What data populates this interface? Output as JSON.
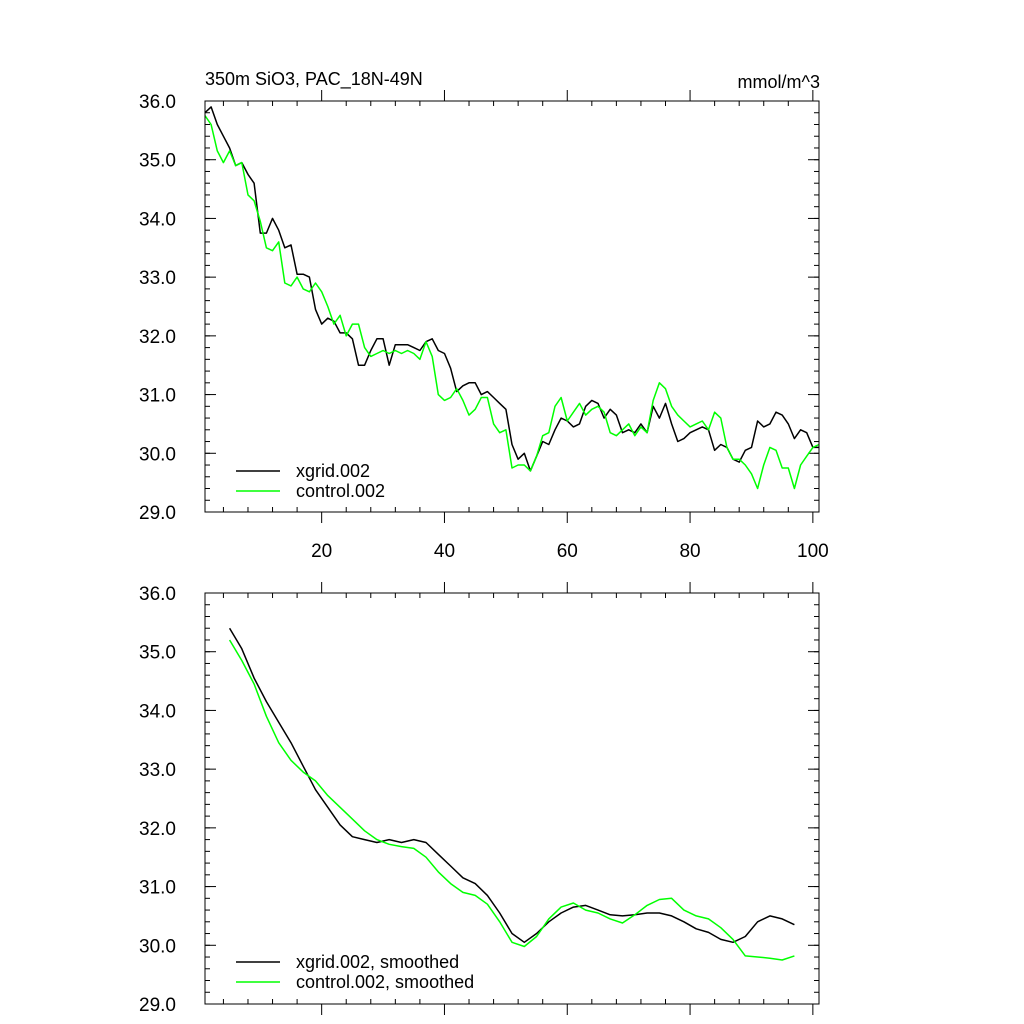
{
  "chart_data": [
    {
      "type": "line",
      "title": "350m SiO3, PAC_18N-49N",
      "units": "mmol/m^3",
      "xlabel": "",
      "ylabel": "",
      "xlim": [
        1,
        101
      ],
      "ylim": [
        29.0,
        36.0
      ],
      "xticks": [
        20,
        40,
        60,
        80,
        100
      ],
      "yticks": [
        29.0,
        30.0,
        31.0,
        32.0,
        33.0,
        34.0,
        35.0,
        36.0
      ],
      "ytick_labels": [
        "29.0",
        "30.0",
        "31.0",
        "32.0",
        "33.0",
        "34.0",
        "35.0",
        "36.0"
      ],
      "legend_position": "bottom-left",
      "series": [
        {
          "name": "xgrid.002",
          "color": "#000000",
          "x": [
            1,
            2,
            3,
            4,
            5,
            6,
            7,
            8,
            9,
            10,
            11,
            12,
            13,
            14,
            15,
            16,
            17,
            18,
            19,
            20,
            21,
            22,
            23,
            24,
            25,
            26,
            27,
            28,
            29,
            30,
            31,
            32,
            33,
            34,
            35,
            36,
            37,
            38,
            39,
            40,
            41,
            42,
            43,
            44,
            45,
            46,
            47,
            48,
            49,
            50,
            51,
            52,
            53,
            54,
            55,
            56,
            57,
            58,
            59,
            60,
            61,
            62,
            63,
            64,
            65,
            66,
            67,
            68,
            69,
            70,
            71,
            72,
            73,
            74,
            75,
            76,
            77,
            78,
            79,
            80,
            81,
            82,
            83,
            84,
            85,
            86,
            87,
            88,
            89,
            90,
            91,
            92,
            93,
            94,
            95,
            96,
            97,
            98,
            99,
            100,
            101
          ],
          "values": [
            35.8,
            35.9,
            35.6,
            35.4,
            35.2,
            34.9,
            34.95,
            34.75,
            34.6,
            33.75,
            33.75,
            34.0,
            33.8,
            33.5,
            33.55,
            33.05,
            33.05,
            33.0,
            32.45,
            32.2,
            32.3,
            32.25,
            32.05,
            32.05,
            31.95,
            31.5,
            31.5,
            31.75,
            31.95,
            31.95,
            31.5,
            31.85,
            31.85,
            31.85,
            31.8,
            31.75,
            31.9,
            31.95,
            31.75,
            31.7,
            31.45,
            31.05,
            31.15,
            31.2,
            31.2,
            31.0,
            31.05,
            30.95,
            30.85,
            30.75,
            30.15,
            29.9,
            30.0,
            29.7,
            29.95,
            30.2,
            30.15,
            30.4,
            30.6,
            30.55,
            30.45,
            30.5,
            30.8,
            30.9,
            30.85,
            30.6,
            30.75,
            30.65,
            30.35,
            30.4,
            30.35,
            30.5,
            30.35,
            30.8,
            30.6,
            30.85,
            30.5,
            30.2,
            30.25,
            30.35,
            30.4,
            30.45,
            30.4,
            30.05,
            30.15,
            30.1,
            29.9,
            29.85,
            30.05,
            30.1,
            30.55,
            30.45,
            30.5,
            30.7,
            30.65,
            30.5,
            30.25,
            30.4,
            30.35,
            30.1,
            30.1
          ]
        },
        {
          "name": "control.002",
          "color": "#00ff00",
          "x": [
            1,
            2,
            3,
            4,
            5,
            6,
            7,
            8,
            9,
            10,
            11,
            12,
            13,
            14,
            15,
            16,
            17,
            18,
            19,
            20,
            21,
            22,
            23,
            24,
            25,
            26,
            27,
            28,
            29,
            30,
            31,
            32,
            33,
            34,
            35,
            36,
            37,
            38,
            39,
            40,
            41,
            42,
            43,
            44,
            45,
            46,
            47,
            48,
            49,
            50,
            51,
            52,
            53,
            54,
            55,
            56,
            57,
            58,
            59,
            60,
            61,
            62,
            63,
            64,
            65,
            66,
            67,
            68,
            69,
            70,
            71,
            72,
            73,
            74,
            75,
            76,
            77,
            78,
            79,
            80,
            81,
            82,
            83,
            84,
            85,
            86,
            87,
            88,
            89,
            90,
            91,
            92,
            93,
            94,
            95,
            96,
            97,
            98,
            99,
            100,
            101
          ],
          "values": [
            35.75,
            35.6,
            35.15,
            34.95,
            35.15,
            34.9,
            34.95,
            34.4,
            34.3,
            33.95,
            33.5,
            33.45,
            33.6,
            32.9,
            32.85,
            33.0,
            32.8,
            32.75,
            32.9,
            32.75,
            32.5,
            32.2,
            32.35,
            32.0,
            32.2,
            32.2,
            31.8,
            31.65,
            31.7,
            31.75,
            31.7,
            31.75,
            31.7,
            31.75,
            31.7,
            31.6,
            31.9,
            31.65,
            31.0,
            30.9,
            30.95,
            31.1,
            30.9,
            30.65,
            30.75,
            30.95,
            30.95,
            30.5,
            30.35,
            30.4,
            29.75,
            29.8,
            29.8,
            29.7,
            29.95,
            30.3,
            30.35,
            30.8,
            30.95,
            30.55,
            30.7,
            30.85,
            30.65,
            30.75,
            30.8,
            30.7,
            30.35,
            30.3,
            30.4,
            30.5,
            30.3,
            30.45,
            30.35,
            30.9,
            31.2,
            31.1,
            30.8,
            30.65,
            30.55,
            30.45,
            30.5,
            30.55,
            30.4,
            30.7,
            30.6,
            30.1,
            29.9,
            29.9,
            29.8,
            29.65,
            29.4,
            29.8,
            30.1,
            30.05,
            29.75,
            29.75,
            29.4,
            29.8,
            29.95,
            30.1,
            30.15
          ]
        }
      ]
    },
    {
      "type": "line",
      "title": "",
      "xlabel": "",
      "ylabel": "",
      "xlim": [
        1,
        101
      ],
      "ylim": [
        29.0,
        36.0
      ],
      "xticks": [
        20,
        40,
        60,
        80,
        100
      ],
      "yticks": [
        29.0,
        30.0,
        31.0,
        32.0,
        33.0,
        34.0,
        35.0,
        36.0
      ],
      "ytick_labels": [
        "29.0",
        "30.0",
        "31.0",
        "32.0",
        "33.0",
        "34.0",
        "35.0",
        "36.0"
      ],
      "legend_position": "bottom-left",
      "series": [
        {
          "name": "xgrid.002, smoothed",
          "color": "#000000",
          "x": [
            5,
            7,
            9,
            11,
            13,
            15,
            17,
            19,
            21,
            23,
            25,
            27,
            29,
            31,
            33,
            35,
            37,
            39,
            41,
            43,
            45,
            47,
            49,
            51,
            53,
            55,
            57,
            59,
            61,
            63,
            65,
            67,
            69,
            71,
            73,
            75,
            77,
            79,
            81,
            83,
            85,
            87,
            89,
            91,
            93,
            95,
            97
          ],
          "values": [
            35.4,
            35.05,
            34.55,
            34.15,
            33.8,
            33.45,
            33.05,
            32.65,
            32.35,
            32.05,
            31.85,
            31.8,
            31.75,
            31.8,
            31.75,
            31.8,
            31.75,
            31.55,
            31.35,
            31.15,
            31.05,
            30.85,
            30.55,
            30.2,
            30.05,
            30.2,
            30.4,
            30.55,
            30.65,
            30.68,
            30.6,
            30.52,
            30.5,
            30.52,
            30.55,
            30.55,
            30.5,
            30.4,
            30.28,
            30.22,
            30.1,
            30.05,
            30.15,
            30.4,
            30.5,
            30.45,
            30.35
          ]
        },
        {
          "name": "control.002, smoothed",
          "color": "#00ff00",
          "x": [
            5,
            7,
            9,
            11,
            13,
            15,
            17,
            19,
            21,
            23,
            25,
            27,
            29,
            31,
            33,
            35,
            37,
            39,
            41,
            43,
            45,
            47,
            49,
            51,
            53,
            55,
            57,
            59,
            61,
            63,
            65,
            67,
            69,
            71,
            73,
            75,
            77,
            79,
            81,
            83,
            85,
            87,
            89,
            91,
            93,
            95,
            97
          ],
          "values": [
            35.2,
            34.85,
            34.45,
            33.9,
            33.45,
            33.15,
            32.95,
            32.8,
            32.55,
            32.35,
            32.15,
            31.95,
            31.8,
            31.72,
            31.68,
            31.65,
            31.5,
            31.25,
            31.05,
            30.9,
            30.85,
            30.7,
            30.4,
            30.05,
            29.98,
            30.15,
            30.45,
            30.65,
            30.72,
            30.6,
            30.55,
            30.45,
            30.38,
            30.52,
            30.68,
            30.78,
            30.8,
            30.6,
            30.5,
            30.45,
            30.3,
            30.1,
            29.82,
            29.8,
            29.78,
            29.75,
            29.82
          ]
        }
      ]
    }
  ]
}
